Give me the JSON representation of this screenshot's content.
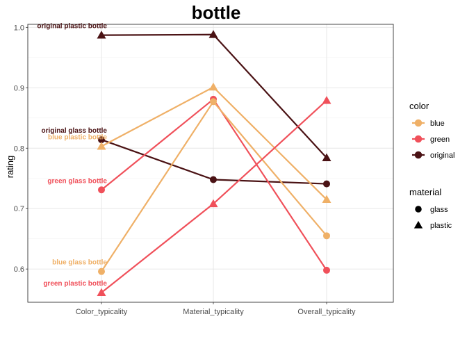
{
  "chart_data": {
    "type": "line",
    "title": "bottle",
    "xlabel": "",
    "ylabel": "rating",
    "categories": [
      "Color_typicality",
      "Material_typicality",
      "Overall_typicality"
    ],
    "ylim": [
      0.545,
      1.005
    ],
    "yticks": [
      0.6,
      0.7,
      0.8,
      0.9,
      1.0
    ],
    "ytick_labels": [
      "0.6",
      "0.7",
      "0.8",
      "0.9",
      "1.0"
    ],
    "grid": true,
    "legend_position": "right",
    "colors": {
      "blue": "#EFB067",
      "green": "#F0505A",
      "original": "#4A1214"
    },
    "legends": [
      {
        "title": "color",
        "items": [
          {
            "label": "blue",
            "key": "blue"
          },
          {
            "label": "green",
            "key": "green"
          },
          {
            "label": "original",
            "key": "original"
          }
        ]
      },
      {
        "title": "material",
        "items": [
          {
            "label": "glass",
            "shape": "circle"
          },
          {
            "label": "plastic",
            "shape": "triangle"
          }
        ]
      }
    ],
    "series": [
      {
        "label": "original plastic bottle",
        "color": "original",
        "material": "plastic",
        "values": [
          0.987,
          0.988,
          0.784
        ]
      },
      {
        "label": "original glass bottle",
        "color": "original",
        "material": "glass",
        "values": [
          0.814,
          0.748,
          0.741
        ]
      },
      {
        "label": "blue plastic bottle",
        "color": "blue",
        "material": "plastic",
        "values": [
          0.803,
          0.901,
          0.715
        ]
      },
      {
        "label": "green glass bottle",
        "color": "green",
        "material": "glass",
        "values": [
          0.731,
          0.881,
          0.598
        ]
      },
      {
        "label": "blue glass bottle",
        "color": "blue",
        "material": "glass",
        "values": [
          0.596,
          0.877,
          0.655
        ]
      },
      {
        "label": "green plastic bottle",
        "color": "green",
        "material": "plastic",
        "values": [
          0.561,
          0.708,
          0.879
        ]
      }
    ]
  }
}
